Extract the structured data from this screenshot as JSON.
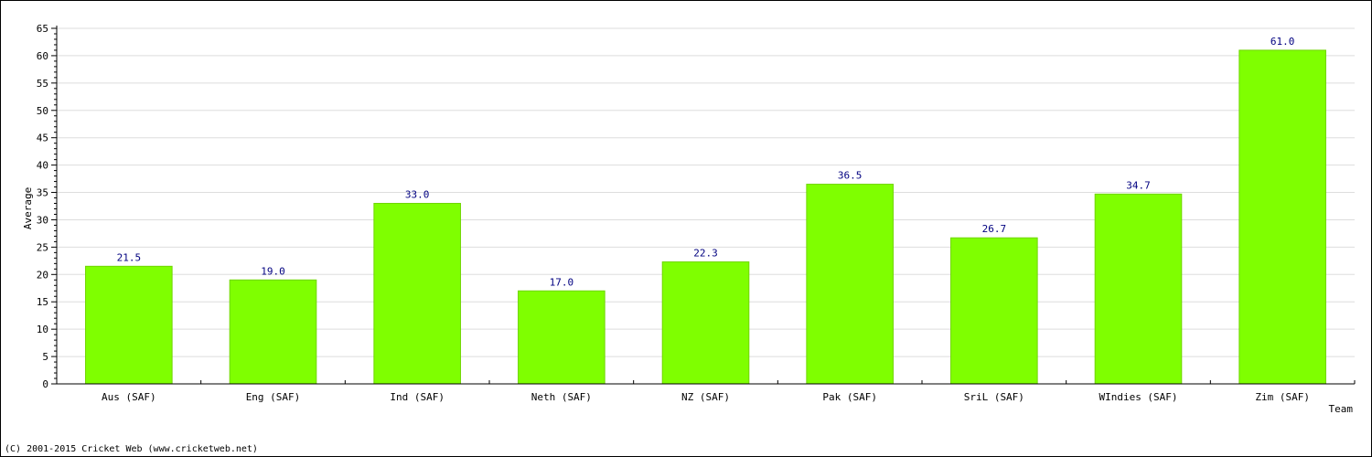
{
  "chart_data": {
    "type": "bar",
    "categories": [
      "Aus (SAF)",
      "Eng (SAF)",
      "Ind (SAF)",
      "Neth (SAF)",
      "NZ (SAF)",
      "Pak (SAF)",
      "SriL (SAF)",
      "WIndies (SAF)",
      "Zim (SAF)"
    ],
    "values": [
      21.5,
      19.0,
      33.0,
      17.0,
      22.3,
      36.5,
      26.7,
      34.7,
      61.0
    ],
    "value_labels": [
      "21.5",
      "19.0",
      "33.0",
      "17.0",
      "22.3",
      "36.5",
      "26.7",
      "34.7",
      "61.0"
    ],
    "xlabel": "Team",
    "ylabel": "Average",
    "ylim": [
      0,
      65
    ],
    "yticks": [
      0,
      5,
      10,
      15,
      20,
      25,
      30,
      35,
      40,
      45,
      50,
      55,
      60,
      65
    ],
    "grid": true,
    "colors": {
      "bar": "#7fff00",
      "bar_edge": "#6fd600",
      "grid": "#dddddd",
      "value_label": "#000080"
    }
  },
  "footer": {
    "copyright": "(C) 2001-2015 Cricket Web (www.cricketweb.net)"
  }
}
